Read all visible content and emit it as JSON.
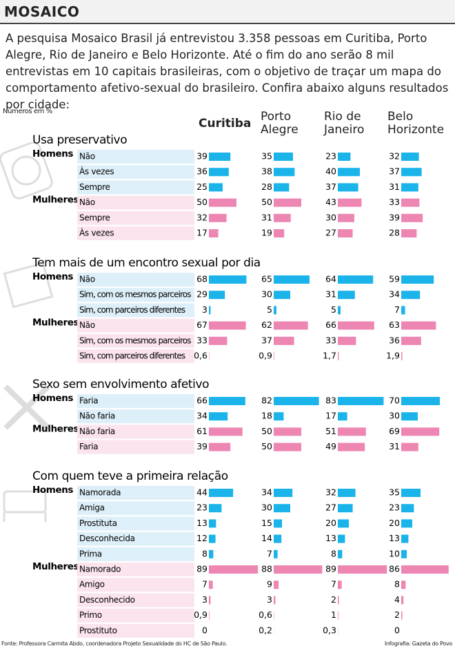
{
  "header": {
    "title": "MOSAICO"
  },
  "intro": "A pesquisa Mosaico Brasil já entrevistou 3.358 pessoas em Curitiba, Porto Alegre, Rio de Janeiro e Belo Horizonte. Até o fim do ano serão 8 mil entrevistas em 10 capitais brasileiras, com o objetivo de traçar um mapa do comportamento afetivo-sexual do brasileiro. Confira abaixo alguns resultados por cidade:",
  "units_note": "Números em %",
  "cities": [
    "Curitiba",
    "Porto Alegre",
    "Rio de Janeiro",
    "Belo Horizonte"
  ],
  "sections": [
    {
      "title": "Usa preservativo",
      "groups": [
        {
          "name": "Homens",
          "color": "#1ab4ea",
          "rows": [
            {
              "label": "Não",
              "values": [
                39,
                35,
                23,
                32
              ]
            },
            {
              "label": "Às vezes",
              "values": [
                36,
                38,
                40,
                37
              ]
            },
            {
              "label": "Sempre",
              "values": [
                25,
                28,
                37,
                31
              ]
            }
          ]
        },
        {
          "name": "Mulheres",
          "color": "#ee86b4",
          "rows": [
            {
              "label": "Não",
              "values": [
                50,
                50,
                43,
                33
              ]
            },
            {
              "label": "Sempre",
              "values": [
                32,
                31,
                30,
                39
              ]
            },
            {
              "label": "Às vezes",
              "values": [
                17,
                19,
                27,
                28
              ]
            }
          ]
        }
      ]
    },
    {
      "title": "Tem mais de um encontro sexual por dia",
      "groups": [
        {
          "name": "Homens",
          "color": "#1ab4ea",
          "rows": [
            {
              "label": "Não",
              "values": [
                68,
                65,
                64,
                59
              ]
            },
            {
              "label": "Sim, com os mesmos parceiros",
              "values": [
                29,
                30,
                31,
                34
              ]
            },
            {
              "label": "Sim, com parceiros diferentes",
              "values": [
                3,
                5,
                5,
                7
              ]
            }
          ]
        },
        {
          "name": "Mulheres",
          "color": "#ee86b4",
          "rows": [
            {
              "label": "Não",
              "values": [
                67,
                62,
                66,
                63
              ]
            },
            {
              "label": "Sim, com os mesmos parceiros",
              "values": [
                33,
                37,
                33,
                36
              ]
            },
            {
              "label": "Sim, com parceiros diferentes",
              "values": [
                0.6,
                0.9,
                1.7,
                1.9
              ],
              "value_labels": [
                "0,6",
                "0,9",
                "1,7",
                "1,9"
              ]
            }
          ]
        }
      ]
    },
    {
      "title": "Sexo sem envolvimento afetivo",
      "groups": [
        {
          "name": "Homens",
          "color": "#1ab4ea",
          "rows": [
            {
              "label": "Faria",
              "values": [
                66,
                82,
                83,
                70
              ]
            },
            {
              "label": "Não faria",
              "values": [
                34,
                18,
                17,
                30
              ]
            }
          ]
        },
        {
          "name": "Mulheres",
          "color": "#ee86b4",
          "rows": [
            {
              "label": "Não faria",
              "values": [
                61,
                50,
                51,
                69
              ]
            },
            {
              "label": "Faria",
              "values": [
                39,
                50,
                49,
                31
              ]
            }
          ]
        }
      ]
    },
    {
      "title": "Com quem teve a primeira relação",
      "groups": [
        {
          "name": "Homens",
          "color": "#1ab4ea",
          "rows": [
            {
              "label": "Namorada",
              "values": [
                44,
                34,
                32,
                35
              ]
            },
            {
              "label": "Amiga",
              "values": [
                23,
                30,
                27,
                23
              ]
            },
            {
              "label": "Prostituta",
              "values": [
                13,
                15,
                20,
                20
              ]
            },
            {
              "label": "Desconhecida",
              "values": [
                12,
                14,
                13,
                13
              ]
            },
            {
              "label": "Prima",
              "values": [
                8,
                7,
                8,
                10
              ]
            }
          ]
        },
        {
          "name": "Mulheres",
          "color": "#ee86b4",
          "rows": [
            {
              "label": "Namorado",
              "values": [
                89,
                88,
                89,
                86
              ]
            },
            {
              "label": "Amigo",
              "values": [
                7,
                9,
                7,
                8
              ]
            },
            {
              "label": "Desconhecido",
              "values": [
                3,
                3,
                2,
                4
              ]
            },
            {
              "label": "Primo",
              "values": [
                0.9,
                0.6,
                1,
                2
              ],
              "value_labels": [
                "0,9",
                "0,6",
                "1",
                "2"
              ]
            },
            {
              "label": "Prostituto",
              "values": [
                0,
                0.2,
                0.3,
                0
              ],
              "value_labels": [
                "0",
                "0,2",
                "0,3",
                "0"
              ]
            }
          ]
        }
      ]
    }
  ],
  "footer": {
    "source": "Fonte: Professora Carmita Abdo, coordenadora Projeto Sexualidade do HC de São Paulo.",
    "credit": "Infografia: Gazeta do Povo"
  }
}
